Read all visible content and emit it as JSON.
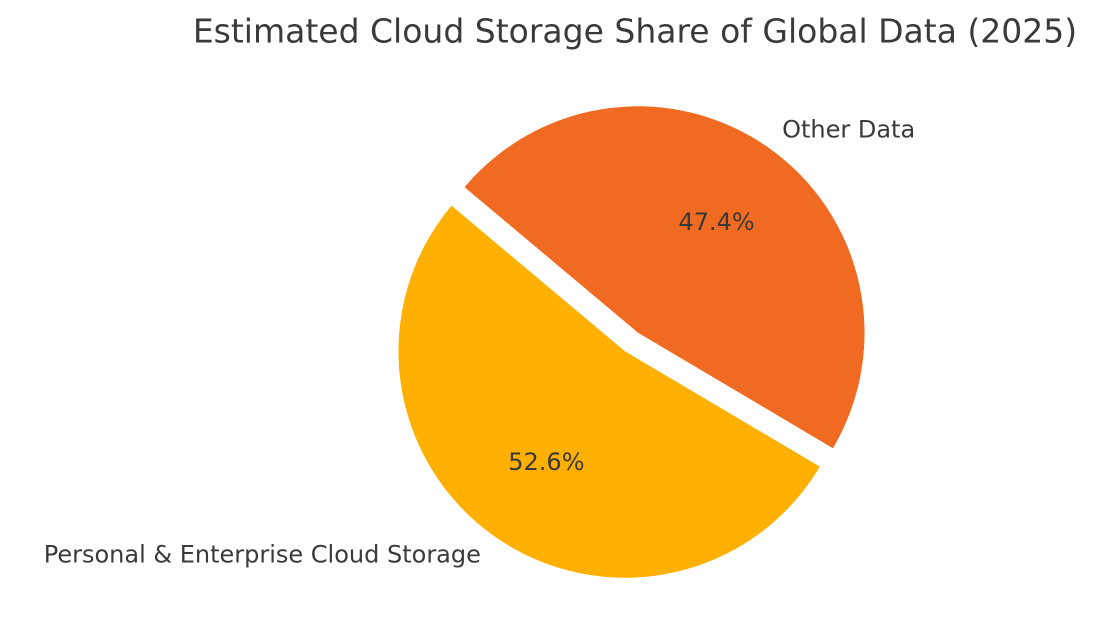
{
  "figure": {
    "background": "#ffffff"
  },
  "chart_data": {
    "type": "pie",
    "title": "Estimated Cloud Storage Share of Global Data (2025)",
    "text_color": "#3a3a3a",
    "start_angle": 140,
    "direction": "counterclockwise",
    "legend": "none",
    "grid": false,
    "label_distance": 1.1,
    "pct_distance": 0.6,
    "slices": [
      {
        "label": "Personal & Enterprise Cloud Storage",
        "value": 52.6,
        "pct_label": "52.6%",
        "color": "#ffb000",
        "explode": 0.05
      },
      {
        "label": "Other Data",
        "value": 47.4,
        "pct_label": "47.4%",
        "color": "#f16a21",
        "explode": 0.05
      }
    ]
  }
}
